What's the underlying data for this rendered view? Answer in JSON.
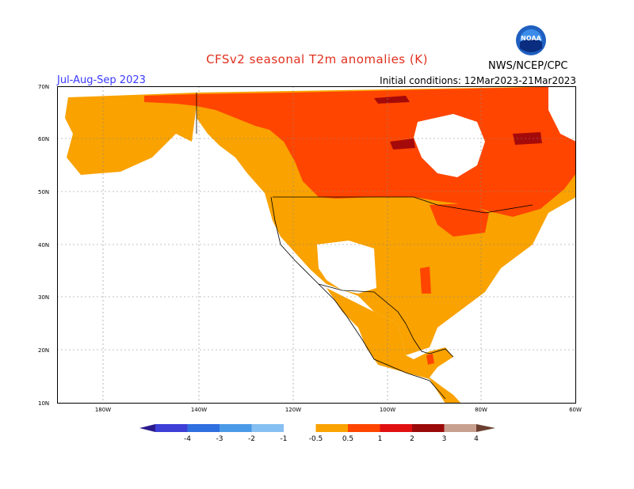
{
  "header": {
    "title": "CFSv2 seasonal T2m anomalies (K)",
    "period": "Jul-Aug-Sep 2023",
    "initial_conditions": "Initial conditions: 12Mar2023-21Mar2023",
    "agency": "NWS/NCEP/CPC",
    "logo_text": "NOAA"
  },
  "map": {
    "region": "North America",
    "lat_range": [
      10,
      70
    ],
    "lon_range": [
      -190,
      -60
    ],
    "lat_labels": [
      "70N",
      "60N",
      "50N",
      "40N",
      "30N",
      "20N",
      "10N"
    ],
    "lon_labels": [
      "180W",
      "140W",
      "120W",
      "100W",
      "80W",
      "60W"
    ],
    "gridlines": true
  },
  "legend": {
    "ticks": [
      "-4",
      "-3",
      "-2",
      "-1",
      "-0.5",
      "0.5",
      "1",
      "2",
      "3",
      "4"
    ],
    "colors": [
      "#2a1a8c",
      "#3d3fd6",
      "#2f6fe0",
      "#4a9ae8",
      "#86c0f2",
      "#ffffff",
      "#f9a200",
      "#ff4500",
      "#e01010",
      "#9a0a0a",
      "#c8a090",
      "#6b4030"
    ]
  },
  "colors": {
    "orange": "#f9a200",
    "red_orange": "#ff4500",
    "dark_red": "#a50a0a",
    "title_red": "#e0301e",
    "period_blue": "#3a3aff"
  }
}
